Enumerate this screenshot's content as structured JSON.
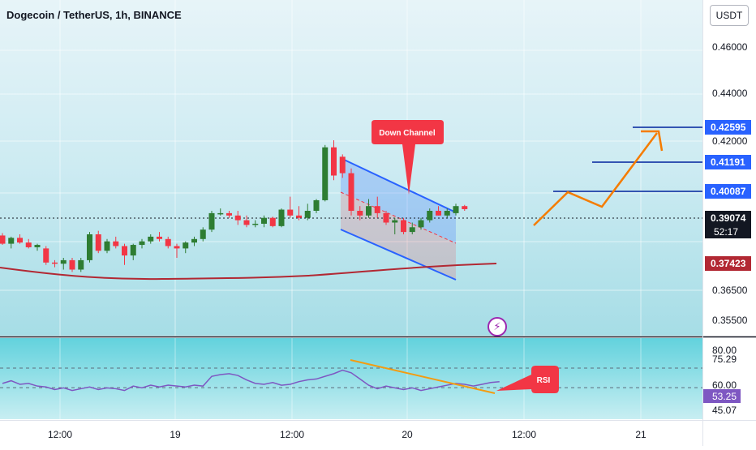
{
  "header": {
    "title": "Dogecoin / TetherUS, 1h, BINANCE",
    "currency": "USDT"
  },
  "colors": {
    "up": "#26a69a",
    "up_body": "#2e7d32",
    "down": "#f23645",
    "ma": "#b22833",
    "channel": "#2962ff",
    "projection": "#f57c00",
    "rsi_line": "#7e57c2",
    "trend": "#f39c12"
  },
  "chart_data": [
    {
      "type": "candlestick",
      "title": "Dogecoin / TetherUS, 1h, BINANCE",
      "y_ticks": [
        "0.46000",
        "0.44000",
        "0.42000",
        "0.36500",
        "0.35500"
      ],
      "x_ticks": [
        "12:00",
        "19",
        "12:00",
        "20",
        "12:00",
        "21"
      ],
      "price_labels": [
        {
          "value": "0.42595",
          "color": "#2962ff"
        },
        {
          "value": "0.41191",
          "color": "#2962ff"
        },
        {
          "value": "0.40087",
          "color": "#2962ff"
        },
        {
          "value": "0.39074",
          "color": "#131722",
          "countdown": "52:17"
        },
        {
          "value": "0.37423",
          "color": "#b22833"
        }
      ],
      "annotations": [
        "Down Channel"
      ],
      "candles": [
        [
          0.3795,
          0.3805,
          0.3755,
          0.376
        ],
        [
          0.376,
          0.379,
          0.374,
          0.3785
        ],
        [
          0.3785,
          0.38,
          0.376,
          0.3765
        ],
        [
          0.3765,
          0.378,
          0.374,
          0.3745
        ],
        [
          0.3745,
          0.376,
          0.373,
          0.3755
        ],
        [
          0.374,
          0.375,
          0.367,
          0.368
        ],
        [
          0.368,
          0.369,
          0.366,
          0.3675
        ],
        [
          0.3675,
          0.37,
          0.365,
          0.369
        ],
        [
          0.369,
          0.37,
          0.364,
          0.365
        ],
        [
          0.365,
          0.37,
          0.364,
          0.369
        ],
        [
          0.369,
          0.381,
          0.368,
          0.38
        ],
        [
          0.38,
          0.3815,
          0.372,
          0.373
        ],
        [
          0.373,
          0.378,
          0.372,
          0.377
        ],
        [
          0.377,
          0.379,
          0.374,
          0.375
        ],
        [
          0.375,
          0.376,
          0.367,
          0.371
        ],
        [
          0.371,
          0.376,
          0.369,
          0.3755
        ],
        [
          0.3755,
          0.378,
          0.374,
          0.377
        ],
        [
          0.377,
          0.38,
          0.376,
          0.379
        ],
        [
          0.379,
          0.381,
          0.377,
          0.378
        ],
        [
          0.378,
          0.379,
          0.374,
          0.375
        ],
        [
          0.375,
          0.376,
          0.37,
          0.374
        ],
        [
          0.374,
          0.377,
          0.372,
          0.3765
        ],
        [
          0.3765,
          0.379,
          0.375,
          0.378
        ],
        [
          0.378,
          0.383,
          0.377,
          0.382
        ],
        [
          0.382,
          0.39,
          0.381,
          0.389
        ],
        [
          0.389,
          0.391,
          0.388,
          0.389
        ],
        [
          0.389,
          0.39,
          0.387,
          0.388
        ],
        [
          0.388,
          0.39,
          0.384,
          0.386
        ],
        [
          0.386,
          0.388,
          0.383,
          0.384
        ],
        [
          0.384,
          0.386,
          0.383,
          0.3845
        ],
        [
          0.3845,
          0.388,
          0.383,
          0.387
        ],
        [
          0.387,
          0.3875,
          0.383,
          0.3835
        ],
        [
          0.3835,
          0.391,
          0.383,
          0.3905
        ],
        [
          0.3905,
          0.396,
          0.387,
          0.388
        ],
        [
          0.388,
          0.392,
          0.386,
          0.387
        ],
        [
          0.387,
          0.393,
          0.386,
          0.39
        ],
        [
          0.39,
          0.395,
          0.389,
          0.3945
        ],
        [
          0.3945,
          0.418,
          0.394,
          0.417
        ],
        [
          0.417,
          0.42,
          0.403,
          0.405
        ],
        [
          0.413,
          0.414,
          0.404,
          0.406
        ],
        [
          0.406,
          0.408,
          0.388,
          0.39
        ],
        [
          0.39,
          0.392,
          0.386,
          0.388
        ],
        [
          0.388,
          0.395,
          0.387,
          0.392
        ],
        [
          0.392,
          0.396,
          0.387,
          0.389
        ],
        [
          0.389,
          0.39,
          0.384,
          0.385
        ],
        [
          0.385,
          0.387,
          0.38,
          0.386
        ],
        [
          0.386,
          0.387,
          0.38,
          0.381
        ],
        [
          0.381,
          0.385,
          0.38,
          0.383
        ],
        [
          0.383,
          0.387,
          0.382,
          0.386
        ],
        [
          0.386,
          0.391,
          0.385,
          0.39
        ],
        [
          0.39,
          0.392,
          0.388,
          0.388
        ],
        [
          0.388,
          0.391,
          0.387,
          0.39
        ],
        [
          0.389,
          0.393,
          0.388,
          0.392
        ],
        [
          0.392,
          0.3925,
          0.39,
          0.3907
        ]
      ],
      "moving_average": [
        [
          0.3735,
          0.3745
        ],
        [
          0.373,
          0.374
        ],
        [
          0.373,
          0.374
        ],
        [
          0.3732,
          0.3742
        ],
        [
          0.374,
          0.375
        ],
        [
          0.375,
          0.376
        ],
        [
          0.374,
          0.375
        ],
        [
          0.374,
          0.375
        ],
        [
          0.3742,
          0.3752
        ]
      ]
    },
    {
      "type": "line",
      "title": "RSI",
      "y_ticks": [
        "80.00",
        "75.29",
        "60.00",
        "53.25",
        "45.07"
      ],
      "annotations": [
        "RSI"
      ],
      "series": [
        {
          "values": [
            58,
            61,
            57,
            58,
            55,
            54,
            51,
            53,
            50,
            52,
            54,
            51,
            53,
            52,
            50,
            55,
            53,
            56,
            54,
            56,
            55,
            54,
            56,
            55,
            66,
            68,
            69,
            67,
            62,
            58,
            57,
            59,
            56,
            57,
            60,
            62,
            63,
            66,
            69,
            73,
            70,
            63,
            56,
            52,
            55,
            53,
            51,
            53,
            50,
            52,
            54,
            56,
            58,
            57,
            55,
            57,
            59,
            60
          ]
        }
      ]
    }
  ]
}
